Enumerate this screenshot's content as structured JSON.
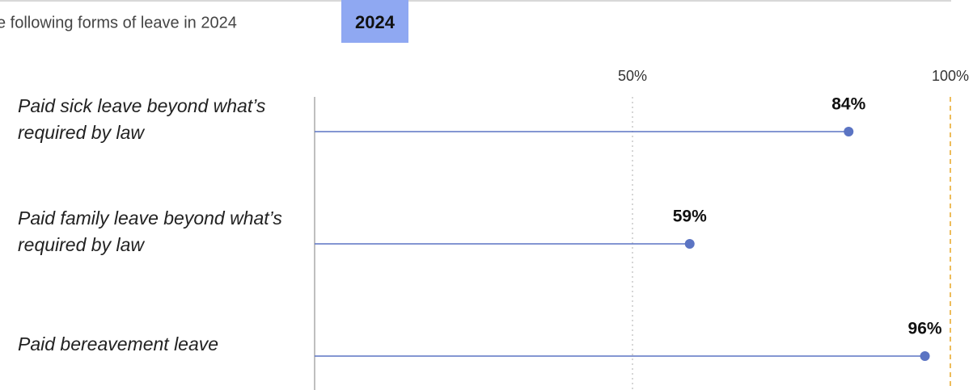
{
  "chart_data": {
    "type": "lollipop",
    "title": "e following forms of leave in 2024",
    "badge": "2024",
    "categories": [
      "Paid sick leave beyond what’s required by law",
      "Paid family leave beyond what’s required by law",
      "Paid bereavement leave"
    ],
    "values": [
      84,
      59,
      96
    ],
    "value_labels": [
      "84%",
      "59%",
      "96%"
    ],
    "color": "#5b74c3",
    "xlim": [
      0,
      100
    ],
    "xticks": [
      {
        "value": 50,
        "label": "50%"
      },
      {
        "value": 100,
        "label": "100%"
      }
    ],
    "grid": true
  }
}
